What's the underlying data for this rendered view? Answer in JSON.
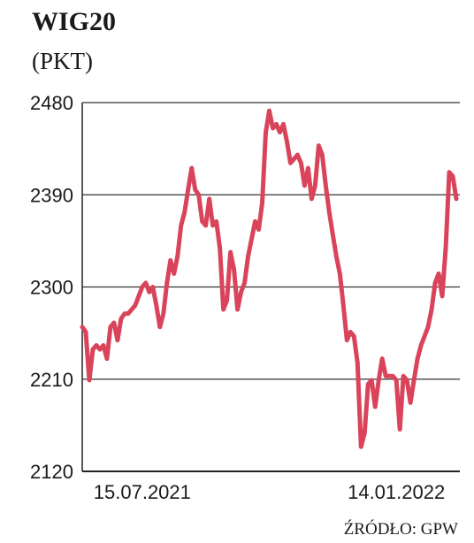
{
  "chart_data": {
    "type": "line",
    "title": "WIG20",
    "subtitle": "(PKT)",
    "source": "ŹRÓDŁO: GPW",
    "categories": [
      null,
      null,
      null,
      null,
      null,
      null,
      null,
      null,
      null,
      null,
      null,
      null,
      null,
      null,
      null,
      null,
      null,
      "15.07.2021",
      null,
      null,
      null,
      null,
      null,
      null,
      null,
      null,
      null,
      null,
      null,
      null,
      null,
      null,
      null,
      null,
      null,
      null,
      null,
      null,
      null,
      null,
      null,
      null,
      null,
      null,
      null,
      null,
      null,
      null,
      null,
      null,
      null,
      null,
      null,
      null,
      null,
      null,
      null,
      null,
      null,
      null,
      null,
      null,
      null,
      null,
      null,
      null,
      null,
      null,
      null,
      null,
      null,
      null,
      null,
      null,
      null,
      null,
      null,
      null,
      null,
      null,
      null,
      null,
      null,
      null,
      null,
      null,
      null,
      null,
      null,
      "14.01.2022",
      null,
      null,
      null,
      null,
      null,
      null,
      null,
      null,
      null,
      null,
      null,
      null,
      null,
      null,
      null,
      null,
      null
    ],
    "series": [
      {
        "name": "WIG20",
        "color": "#d9445a",
        "values": [
          2261,
          2256,
          2209,
          2239,
          2243,
          2239,
          2243,
          2230,
          2261,
          2265,
          2248,
          2269,
          2274,
          2274,
          2278,
          2282,
          2291,
          2300,
          2304,
          2295,
          2300,
          2282,
          2261,
          2274,
          2304,
          2326,
          2313,
          2330,
          2360,
          2373,
          2395,
          2416,
          2395,
          2390,
          2364,
          2360,
          2386,
          2360,
          2364,
          2338,
          2278,
          2287,
          2334,
          2317,
          2278,
          2295,
          2304,
          2330,
          2347,
          2364,
          2356,
          2382,
          2451,
          2472,
          2455,
          2459,
          2451,
          2459,
          2442,
          2421,
          2425,
          2429,
          2421,
          2399,
          2416,
          2386,
          2399,
          2438,
          2429,
          2399,
          2373,
          2351,
          2330,
          2313,
          2282,
          2248,
          2256,
          2252,
          2226,
          2144,
          2157,
          2205,
          2209,
          2183,
          2209,
          2230,
          2213,
          2213,
          2213,
          2209,
          2161,
          2213,
          2209,
          2187,
          2209,
          2230,
          2243,
          2252,
          2261,
          2278,
          2304,
          2313,
          2291,
          2338,
          2412,
          2408,
          2386
        ]
      }
    ],
    "ylim": [
      2120,
      2480
    ],
    "yticks": [
      2120,
      2210,
      2300,
      2390,
      2480
    ],
    "grid": true
  }
}
